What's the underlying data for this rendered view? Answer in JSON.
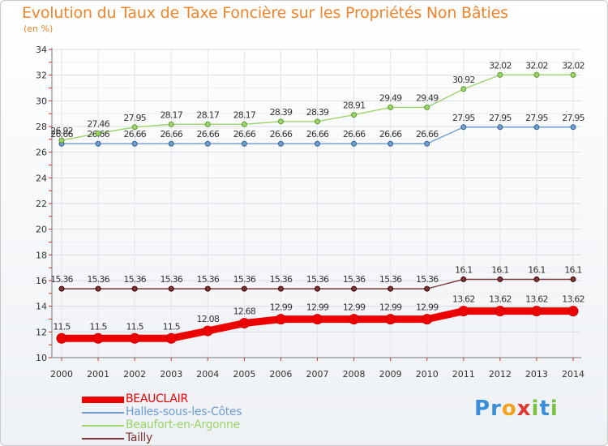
{
  "title": "Evolution du Taux de Taxe Foncière sur les Propriétés Non Bâties",
  "unit": "(en %)",
  "logo": {
    "letters": [
      "P",
      "r",
      "o",
      "x",
      "i",
      "t",
      "i"
    ],
    "colors": [
      "#3b8fd9",
      "#3b8fd9",
      "#f3a31b",
      "#e2372f",
      "#7cc242",
      "#3b8fd9",
      "#7cc242"
    ]
  },
  "chart_data": {
    "type": "line",
    "x": [
      "2000",
      "2001",
      "2002",
      "2003",
      "2004",
      "2005",
      "2006",
      "2007",
      "2008",
      "2009",
      "2010",
      "2011",
      "2012",
      "2013",
      "2014"
    ],
    "ylim": [
      10,
      34
    ],
    "yticks": [
      10,
      12,
      14,
      16,
      18,
      20,
      22,
      24,
      26,
      28,
      30,
      32,
      34
    ],
    "grid": true,
    "legend": "bottom-left",
    "series": [
      {
        "name": "BEAUCLAIR",
        "color": "#ee0000",
        "width": 9,
        "values": [
          11.5,
          11.5,
          11.5,
          11.5,
          12.08,
          12.68,
          12.99,
          12.99,
          12.99,
          12.99,
          12.99,
          13.62,
          13.62,
          13.62,
          13.62
        ],
        "labels": [
          "11.5",
          "11.5",
          "11.5",
          "11.5",
          "12.08",
          "12.68",
          "12.99",
          "12.99",
          "12.99",
          "12.99",
          "12.99",
          "13.62",
          "13.62",
          "13.62",
          "13.62"
        ]
      },
      {
        "name": "Halles-sous-les-Côtes",
        "color": "#6f9ed0",
        "width": 1.4,
        "values": [
          26.66,
          26.66,
          26.66,
          26.66,
          26.66,
          26.66,
          26.66,
          26.66,
          26.66,
          26.66,
          26.66,
          27.95,
          27.95,
          27.95,
          27.95
        ],
        "labels": [
          "26.66",
          "26.66",
          "26.66",
          "26.66",
          "26.66",
          "26.66",
          "26.66",
          "26.66",
          "26.66",
          "26.66",
          "26.66",
          "27.95",
          "27.95",
          "27.95",
          "27.95"
        ]
      },
      {
        "name": "Beaufort-en-Argonne",
        "color": "#9bd46a",
        "width": 1.4,
        "values": [
          26.92,
          27.46,
          27.95,
          28.17,
          28.17,
          28.17,
          28.39,
          28.39,
          28.91,
          29.49,
          29.49,
          30.92,
          32.02,
          32.02,
          32.02
        ],
        "labels": [
          "26.92",
          "27.46",
          "27.95",
          "28.17",
          "28.17",
          "28.17",
          "28.39",
          "28.39",
          "28.91",
          "29.49",
          "29.49",
          "30.92",
          "32.02",
          "32.02",
          "32.02"
        ]
      },
      {
        "name": "Tailly",
        "color": "#7a3535",
        "width": 1.4,
        "values": [
          15.36,
          15.36,
          15.36,
          15.36,
          15.36,
          15.36,
          15.36,
          15.36,
          15.36,
          15.36,
          15.36,
          16.1,
          16.1,
          16.1,
          16.1
        ],
        "labels": [
          "15.36",
          "15.36",
          "15.36",
          "15.36",
          "15.36",
          "15.36",
          "15.36",
          "15.36",
          "15.36",
          "15.36",
          "15.36",
          "16.1",
          "16.1",
          "16.1",
          "16.1"
        ]
      }
    ]
  }
}
